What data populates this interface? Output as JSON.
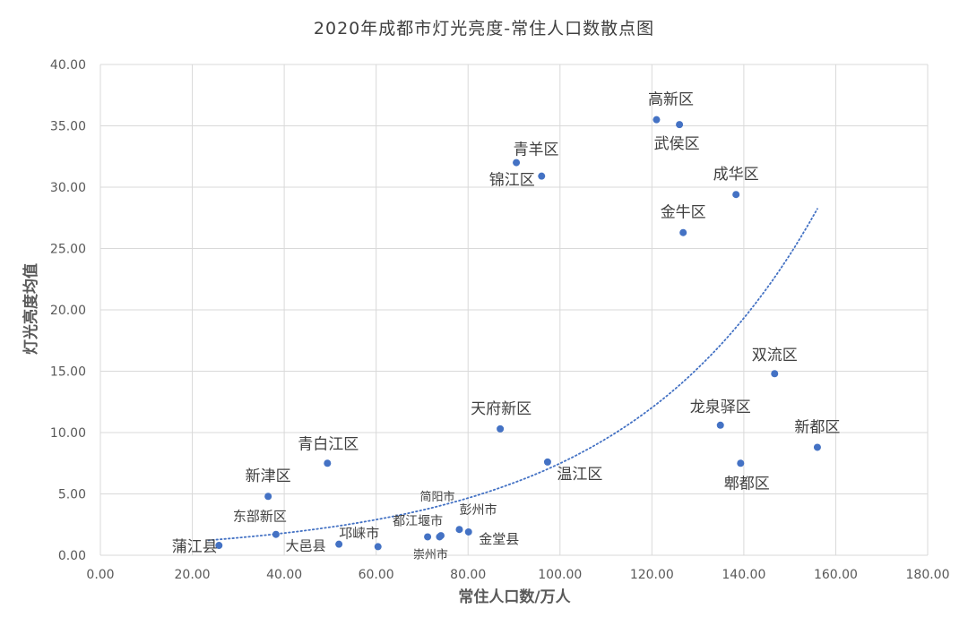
{
  "chart_data": {
    "type": "scatter",
    "title": "2020年成都市灯光亮度-常住人口数散点图",
    "xlabel": "常住人口数/万人",
    "ylabel": "灯光亮度均值",
    "xlim": [
      0,
      180
    ],
    "ylim": [
      0,
      40
    ],
    "x_ticks": [
      "0.00",
      "20.00",
      "40.00",
      "60.00",
      "80.00",
      "100.00",
      "120.00",
      "140.00",
      "160.00",
      "180.00"
    ],
    "y_ticks": [
      "0.00",
      "5.00",
      "10.00",
      "15.00",
      "20.00",
      "25.00",
      "30.00",
      "35.00",
      "40.00"
    ],
    "grid": true,
    "marker_color": "#4472c4",
    "trendline": {
      "type": "exponential",
      "style": "dotted",
      "color": "#4472c4",
      "x_range": [
        23.5,
        156
      ],
      "a": 0.7,
      "b": 0.0237
    },
    "points": [
      {
        "label": "高新区",
        "x": 121.0,
        "y": 35.5
      },
      {
        "label": "武侯区",
        "x": 126.0,
        "y": 35.1
      },
      {
        "label": "青羊区",
        "x": 90.5,
        "y": 32.0
      },
      {
        "label": "锦江区",
        "x": 96.0,
        "y": 30.9
      },
      {
        "label": "成华区",
        "x": 138.3,
        "y": 29.4
      },
      {
        "label": "金牛区",
        "x": 126.8,
        "y": 26.3
      },
      {
        "label": "双流区",
        "x": 146.7,
        "y": 14.8
      },
      {
        "label": "天府新区",
        "x": 87.0,
        "y": 10.3
      },
      {
        "label": "龙泉驿区",
        "x": 134.9,
        "y": 10.6
      },
      {
        "label": "新都区",
        "x": 156.0,
        "y": 8.8
      },
      {
        "label": "郫都区",
        "x": 139.3,
        "y": 7.5
      },
      {
        "label": "温江区",
        "x": 97.3,
        "y": 7.6
      },
      {
        "label": "青白江区",
        "x": 49.4,
        "y": 7.5
      },
      {
        "label": "新津区",
        "x": 36.5,
        "y": 4.8
      },
      {
        "label": "东部新区",
        "x": 38.2,
        "y": 1.7
      },
      {
        "label": "蒲江县",
        "x": 25.8,
        "y": 0.8
      },
      {
        "label": "大邑县",
        "x": 51.9,
        "y": 0.9
      },
      {
        "label": "邛崃市",
        "x": 60.4,
        "y": 0.7
      },
      {
        "label": "都江堰市",
        "x": 71.2,
        "y": 1.5
      },
      {
        "label": "崇州市",
        "x": 73.8,
        "y": 1.5
      },
      {
        "label": "简阳市",
        "x": 74.1,
        "y": 1.6
      },
      {
        "label": "彭州市",
        "x": 78.1,
        "y": 2.1
      },
      {
        "label": "金堂县",
        "x": 80.1,
        "y": 1.9
      }
    ]
  }
}
